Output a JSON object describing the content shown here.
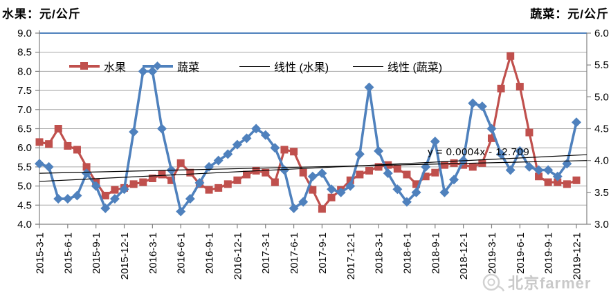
{
  "page": {
    "background": "#FFFFFF"
  },
  "header": {
    "left_axis_title": "水果：元/公斤",
    "right_axis_title": "蔬菜：元/公斤"
  },
  "legend": {
    "items": [
      {
        "label": "水果",
        "type": "fruit"
      },
      {
        "label": "蔬菜",
        "type": "veg"
      },
      {
        "label": "线性 (水果)",
        "type": "trend"
      },
      {
        "label": "线性 (蔬菜)",
        "type": "trend"
      }
    ]
  },
  "annotation": {
    "text": "y = 0.0004x - 12.709"
  },
  "watermark": {
    "text": "北京farmer"
  },
  "colors": {
    "fruit": "#C0504D",
    "veg": "#4F81BD",
    "trend": "#000000",
    "grid": "#A6A6A6",
    "axis": "#808080",
    "top_border": "#4F81BD",
    "tick_text": "#000000",
    "watermark": "#C9C9C9"
  },
  "chart_data": {
    "type": "line",
    "title": "",
    "left_axis": {
      "title": "水果：元/公斤",
      "min": 4.0,
      "max": 9.0,
      "step": 0.5
    },
    "right_axis": {
      "title": "蔬菜：元/公斤",
      "min": 3.0,
      "max": 6.0,
      "step": 0.5
    },
    "grid": true,
    "legend_position": "top-inside",
    "x_months": [
      "2015-3",
      "2015-4",
      "2015-5",
      "2015-6",
      "2015-7",
      "2015-8",
      "2015-9",
      "2015-10",
      "2015-11",
      "2015-12",
      "2016-1",
      "2016-2",
      "2016-3",
      "2016-4",
      "2016-5",
      "2016-6",
      "2016-7",
      "2016-8",
      "2016-9",
      "2016-10",
      "2016-11",
      "2016-12",
      "2017-1",
      "2017-2",
      "2017-3",
      "2017-4",
      "2017-5",
      "2017-6",
      "2017-7",
      "2017-8",
      "2017-9",
      "2017-10",
      "2017-11",
      "2017-12",
      "2018-1",
      "2018-2",
      "2018-3",
      "2018-4",
      "2018-5",
      "2018-6",
      "2018-7",
      "2018-8",
      "2018-9",
      "2018-10",
      "2018-11",
      "2018-12",
      "2019-1",
      "2019-2",
      "2019-3",
      "2019-4",
      "2019-5",
      "2019-6",
      "2019-7",
      "2019-8",
      "2019-9",
      "2019-10",
      "2019-11",
      "2019-12"
    ],
    "x_tick_labels": [
      "2015-3-1",
      "2015-6-1",
      "2015-9-1",
      "2015-12-1",
      "2016-3-1",
      "2016-6-1",
      "2016-9-1",
      "2016-12-1",
      "2017-3-1",
      "2017-6-1",
      "2017-9-1",
      "2017-12-1",
      "2018-3-1",
      "2018-6-1",
      "2018-9-1",
      "2018-12-1",
      "2019-3-1",
      "2019-6-1",
      "2019-9-1",
      "2019-12-1"
    ],
    "series": [
      {
        "name": "水果",
        "axis": "left",
        "marker": "square",
        "color": "#C0504D",
        "values": [
          6.15,
          6.1,
          6.5,
          6.05,
          5.95,
          5.5,
          5.1,
          4.75,
          4.9,
          4.95,
          5.05,
          5.1,
          5.2,
          5.3,
          5.15,
          5.6,
          5.35,
          5.05,
          4.9,
          4.95,
          5.05,
          5.15,
          5.3,
          5.4,
          5.35,
          5.1,
          5.95,
          5.9,
          5.35,
          4.9,
          4.4,
          4.7,
          4.9,
          5.15,
          5.3,
          5.4,
          5.5,
          5.55,
          5.45,
          5.3,
          5.05,
          5.25,
          5.35,
          5.55,
          5.6,
          5.55,
          5.5,
          5.6,
          6.25,
          7.55,
          8.4,
          7.6,
          6.4,
          5.25,
          5.1,
          5.1,
          5.05,
          5.15
        ]
      },
      {
        "name": "蔬菜",
        "axis": "right",
        "marker": "diamond",
        "color": "#4F81BD",
        "values": [
          3.95,
          3.9,
          3.4,
          3.4,
          3.45,
          3.8,
          3.6,
          3.25,
          3.4,
          3.55,
          4.45,
          5.4,
          5.4,
          4.5,
          3.85,
          3.2,
          3.4,
          3.65,
          3.9,
          4.0,
          4.1,
          4.25,
          4.35,
          4.5,
          4.4,
          4.2,
          3.85,
          3.25,
          3.35,
          3.75,
          3.8,
          3.55,
          3.5,
          3.6,
          4.1,
          5.15,
          4.15,
          3.8,
          3.55,
          3.35,
          3.5,
          3.9,
          4.3,
          3.5,
          3.7,
          4.0,
          4.9,
          4.85,
          4.5,
          4.1,
          3.85,
          4.15,
          3.9,
          3.85,
          3.85,
          3.75,
          3.95,
          4.6
        ]
      }
    ],
    "trendlines": [
      {
        "name": "线性 (水果)",
        "axis": "left",
        "start": 5.12,
        "end": 5.82,
        "equation": "y = 0.0004x - 12.709"
      },
      {
        "name": "线性 (蔬菜)",
        "axis": "right",
        "start": 3.8,
        "end": 4.0
      }
    ]
  }
}
